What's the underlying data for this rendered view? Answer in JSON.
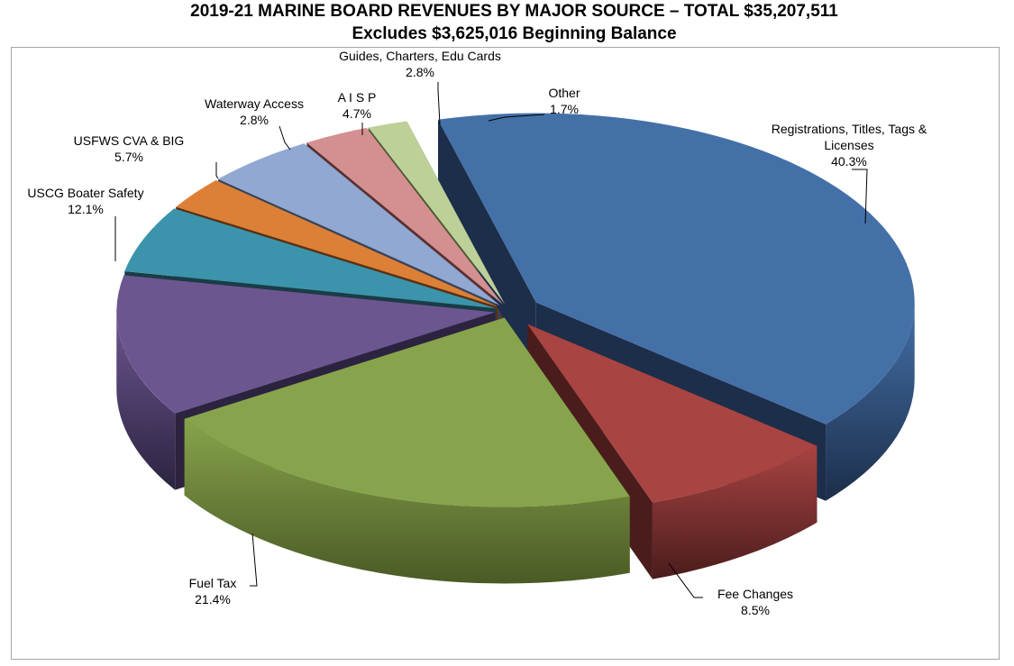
{
  "chart_data": {
    "type": "pie",
    "title": "2019-21 MARINE  BOARD REVENUES BY MAJOR  SOURCE – TOTAL $35,207,511",
    "subtitle": "Excludes  $3,625,016  Beginning  Balance",
    "slices": [
      {
        "name_lines": [
          "Registrations, Titles, Tags &",
          "Licenses"
        ],
        "pct_label": "40.3%",
        "value": 40.3,
        "color": "#4470a8",
        "dark": "#1c2e4a"
      },
      {
        "name_lines": [
          "Fee Changes"
        ],
        "pct_label": "8.5%",
        "value": 8.5,
        "color": "#a84442",
        "dark": "#4a1c1c"
      },
      {
        "name_lines": [
          "Fuel Tax"
        ],
        "pct_label": "21.4%",
        "value": 21.4,
        "color": "#87a44c",
        "dark": "#4a5a25"
      },
      {
        "name_lines": [
          "USCG Boater Safety"
        ],
        "pct_label": "12.1%",
        "value": 12.1,
        "color": "#6c5690",
        "dark": "#2c2340"
      },
      {
        "name_lines": [
          "USFWS CVA & BIG"
        ],
        "pct_label": "5.7%",
        "value": 5.7,
        "color": "#3c94ac",
        "dark": "#1a3c46"
      },
      {
        "name_lines": [
          "Waterway Access"
        ],
        "pct_label": "2.8%",
        "value": 2.8,
        "color": "#dc8038",
        "dark": "#5c3010"
      },
      {
        "name_lines": [
          "A I S P"
        ],
        "pct_label": "4.7%",
        "value": 4.7,
        "color": "#90a8d2",
        "dark": "#38445a"
      },
      {
        "name_lines": [
          "Guides, Charters,  Edu Cards"
        ],
        "pct_label": "2.8%",
        "value": 2.8,
        "color": "#d49090",
        "dark": "#5a3030"
      },
      {
        "name_lines": [
          "Other"
        ],
        "pct_label": "1.7%",
        "value": 1.7,
        "color": "#bcd098",
        "dark": "#4c5a34"
      }
    ]
  }
}
